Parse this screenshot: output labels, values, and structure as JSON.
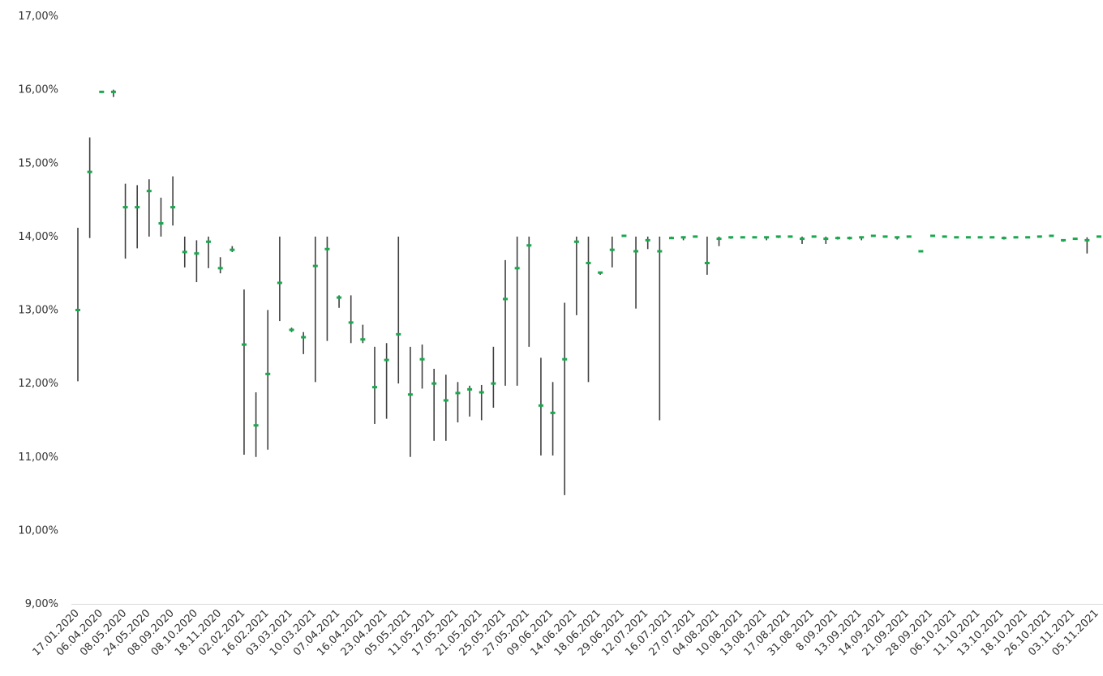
{
  "chart_data": {
    "type": "high-low-close",
    "y_ticks": [
      "9,00%",
      "10,00%",
      "11,00%",
      "12,00%",
      "13,00%",
      "14,00%",
      "15,00%",
      "16,00%",
      "17,00%"
    ],
    "ylim": [
      9,
      17
    ],
    "y_unit": "%",
    "grid": false,
    "legend": "none",
    "colors": {
      "range_line": "#404040",
      "close_marker": "#1aa84f",
      "axis": "#d9d9d9"
    },
    "x_labels": [
      "17.01.2020",
      "06.04.2020",
      "08.05.2020",
      "24.05.2020",
      "08.09.2020",
      "08.10.2020",
      "18.11.2020",
      "02.02.2021",
      "16.02.2021",
      "03.03.2021",
      "10.03.2021",
      "07.04.2021",
      "16.04.2021",
      "23.04.2021",
      "05.05.2021",
      "11.05.2021",
      "17.05.2021",
      "21.05.2021",
      "25.05.2021",
      "27.05.2021",
      "09.06.2021",
      "14.06.2021",
      "18.06.2021",
      "29.06.2021",
      "12.07.2021",
      "16.07.2021",
      "27.07.2021",
      "04.08.2021",
      "10.08.2021",
      "13.08.2021",
      "17.08.2021",
      "31.08.2021",
      "8.09.2021",
      "13.09.2021",
      "14.09.2021",
      "21.09.2021",
      "28.09.2021",
      "06.10.2021",
      "11.10.2021",
      "13.10.2021",
      "18.10.2021",
      "26.10.2021",
      "03.11.2021",
      "05.11.2021"
    ],
    "points": [
      {
        "high": 14.12,
        "low": 12.03,
        "close": 13.0
      },
      {
        "high": 15.35,
        "low": 13.98,
        "close": 14.88
      },
      {
        "high": 15.97,
        "low": 15.97,
        "close": 15.97
      },
      {
        "high": 16.0,
        "low": 15.9,
        "close": 15.97
      },
      {
        "high": 14.72,
        "low": 13.7,
        "close": 14.4
      },
      {
        "high": 14.7,
        "low": 13.84,
        "close": 14.4
      },
      {
        "high": 14.78,
        "low": 14.0,
        "close": 14.62
      },
      {
        "high": 14.53,
        "low": 14.0,
        "close": 14.18
      },
      {
        "high": 14.82,
        "low": 14.15,
        "close": 14.4
      },
      {
        "high": 14.0,
        "low": 13.58,
        "close": 13.79
      },
      {
        "high": 13.95,
        "low": 13.38,
        "close": 13.77
      },
      {
        "high": 14.0,
        "low": 13.57,
        "close": 13.93
      },
      {
        "high": 13.72,
        "low": 13.5,
        "close": 13.57
      },
      {
        "high": 13.87,
        "low": 13.79,
        "close": 13.82
      },
      {
        "high": 13.28,
        "low": 11.03,
        "close": 12.53
      },
      {
        "high": 11.88,
        "low": 11.0,
        "close": 11.43
      },
      {
        "high": 13.0,
        "low": 11.1,
        "close": 12.13
      },
      {
        "high": 14.0,
        "low": 12.85,
        "close": 13.37
      },
      {
        "high": 12.76,
        "low": 12.7,
        "close": 12.73
      },
      {
        "high": 12.7,
        "low": 12.4,
        "close": 12.63
      },
      {
        "high": 14.0,
        "low": 12.02,
        "close": 13.6
      },
      {
        "high": 14.0,
        "low": 12.58,
        "close": 13.83
      },
      {
        "high": 13.2,
        "low": 13.03,
        "close": 13.17
      },
      {
        "high": 13.2,
        "low": 12.55,
        "close": 12.83
      },
      {
        "high": 12.8,
        "low": 12.55,
        "close": 12.6
      },
      {
        "high": 12.5,
        "low": 11.45,
        "close": 11.95
      },
      {
        "high": 12.55,
        "low": 11.52,
        "close": 12.32
      },
      {
        "high": 14.0,
        "low": 12.0,
        "close": 12.67
      },
      {
        "high": 12.5,
        "low": 11.0,
        "close": 11.85
      },
      {
        "high": 12.53,
        "low": 11.93,
        "close": 12.33
      },
      {
        "high": 12.2,
        "low": 11.22,
        "close": 12.0
      },
      {
        "high": 12.12,
        "low": 11.22,
        "close": 11.77
      },
      {
        "high": 12.02,
        "low": 11.47,
        "close": 11.87
      },
      {
        "high": 11.97,
        "low": 11.55,
        "close": 11.92
      },
      {
        "high": 11.98,
        "low": 11.5,
        "close": 11.88
      },
      {
        "high": 12.5,
        "low": 11.67,
        "close": 12.0
      },
      {
        "high": 13.68,
        "low": 11.97,
        "close": 13.15
      },
      {
        "high": 14.0,
        "low": 11.97,
        "close": 13.57
      },
      {
        "high": 14.0,
        "low": 12.5,
        "close": 13.88
      },
      {
        "high": 12.35,
        "low": 11.02,
        "close": 11.7
      },
      {
        "high": 12.02,
        "low": 11.02,
        "close": 11.6
      },
      {
        "high": 13.1,
        "low": 10.48,
        "close": 12.33
      },
      {
        "high": 14.0,
        "low": 12.93,
        "close": 13.93
      },
      {
        "high": 14.0,
        "low": 12.02,
        "close": 13.64
      },
      {
        "high": 13.52,
        "low": 13.48,
        "close": 13.51
      },
      {
        "high": 14.0,
        "low": 13.58,
        "close": 13.82
      },
      {
        "high": 14.02,
        "low": 14.0,
        "close": 14.01
      },
      {
        "high": 14.0,
        "low": 13.02,
        "close": 13.8
      },
      {
        "high": 14.0,
        "low": 13.83,
        "close": 13.95
      },
      {
        "high": 14.0,
        "low": 11.5,
        "close": 13.8
      },
      {
        "high": 14.0,
        "low": 13.97,
        "close": 13.98
      },
      {
        "high": 14.0,
        "low": 13.95,
        "close": 13.99
      },
      {
        "high": 14.01,
        "low": 13.99,
        "close": 14.0
      },
      {
        "high": 14.0,
        "low": 13.48,
        "close": 13.64
      },
      {
        "high": 14.0,
        "low": 13.87,
        "close": 13.97
      },
      {
        "high": 14.0,
        "low": 13.97,
        "close": 13.99
      },
      {
        "high": 14.0,
        "low": 13.98,
        "close": 13.99
      },
      {
        "high": 14.0,
        "low": 13.98,
        "close": 13.99
      },
      {
        "high": 14.0,
        "low": 13.95,
        "close": 13.99
      },
      {
        "high": 14.0,
        "low": 13.98,
        "close": 14.0
      },
      {
        "high": 14.01,
        "low": 13.99,
        "close": 14.0
      },
      {
        "high": 14.0,
        "low": 13.9,
        "close": 13.97
      },
      {
        "high": 14.01,
        "low": 13.99,
        "close": 14.0
      },
      {
        "high": 14.0,
        "low": 13.9,
        "close": 13.97
      },
      {
        "high": 14.0,
        "low": 13.96,
        "close": 13.98
      },
      {
        "high": 14.0,
        "low": 13.96,
        "close": 13.98
      },
      {
        "high": 14.0,
        "low": 13.95,
        "close": 13.99
      },
      {
        "high": 14.01,
        "low": 14.0,
        "close": 14.01
      },
      {
        "high": 14.0,
        "low": 13.99,
        "close": 14.0
      },
      {
        "high": 14.0,
        "low": 13.96,
        "close": 13.99
      },
      {
        "high": 14.0,
        "low": 14.0,
        "close": 14.0
      },
      {
        "high": 13.81,
        "low": 13.79,
        "close": 13.8
      },
      {
        "high": 14.02,
        "low": 14.0,
        "close": 14.01
      },
      {
        "high": 14.0,
        "low": 13.99,
        "close": 14.0
      },
      {
        "high": 14.0,
        "low": 13.98,
        "close": 13.99
      },
      {
        "high": 14.0,
        "low": 13.99,
        "close": 13.99
      },
      {
        "high": 14.0,
        "low": 13.99,
        "close": 13.99
      },
      {
        "high": 14.0,
        "low": 13.99,
        "close": 13.99
      },
      {
        "high": 14.0,
        "low": 13.96,
        "close": 13.98
      },
      {
        "high": 14.0,
        "low": 13.99,
        "close": 13.99
      },
      {
        "high": 14.0,
        "low": 13.99,
        "close": 13.99
      },
      {
        "high": 14.0,
        "low": 14.0,
        "close": 14.0
      },
      {
        "high": 14.02,
        "low": 14.0,
        "close": 14.01
      },
      {
        "high": 13.96,
        "low": 13.93,
        "close": 13.95
      },
      {
        "high": 13.98,
        "low": 13.96,
        "close": 13.97
      },
      {
        "high": 13.99,
        "low": 13.77,
        "close": 13.95
      },
      {
        "high": 14.0,
        "low": 14.0,
        "close": 14.0
      }
    ]
  }
}
